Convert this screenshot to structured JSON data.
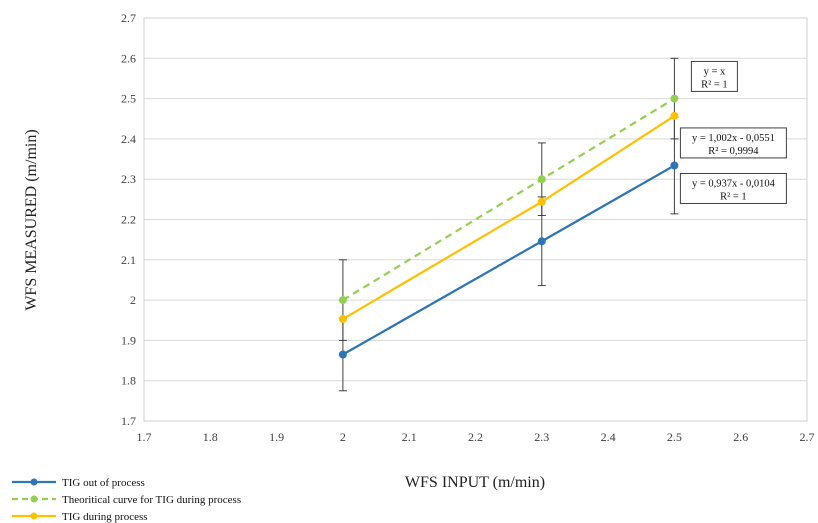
{
  "chart_data": {
    "type": "line",
    "xlabel": "WFS INPUT (m/min)",
    "ylabel": "WFS MEASURED (m/min)",
    "xlim": [
      1.7,
      2.7
    ],
    "ylim": [
      1.7,
      2.7
    ],
    "xticks": [
      "1.7",
      "1.8",
      "1.9",
      "2",
      "2.1",
      "2.2",
      "2.3",
      "2.4",
      "2.5",
      "2.6",
      "2.7"
    ],
    "yticks": [
      "1.7",
      "1.8",
      "1.9",
      "2",
      "2.1",
      "2.2",
      "2.3",
      "2.4",
      "2.5",
      "2.6",
      "2.7"
    ],
    "grid": "horizontal",
    "legend_position": "bottom-left",
    "series": [
      {
        "name": "TIG out of process",
        "color": "#2E75B6",
        "dash": "solid",
        "x": [
          2.0,
          2.3,
          2.5
        ],
        "y": [
          1.865,
          2.146,
          2.334
        ],
        "error": [
          0.09,
          0.11,
          0.12
        ]
      },
      {
        "name": "Theoritical curve for TIG during process",
        "color": "#92D050",
        "dash": "dashed",
        "x": [
          2.0,
          2.3,
          2.5
        ],
        "y": [
          2.0,
          2.3,
          2.5
        ],
        "error": [
          0.1,
          0.09,
          0.1
        ]
      },
      {
        "name": "TIG during process",
        "color": "#FFC000",
        "dash": "solid",
        "x": [
          2.0,
          2.3,
          2.5
        ],
        "y": [
          1.953,
          2.244,
          2.457
        ],
        "error": null
      }
    ],
    "annotations": [
      {
        "line1": "y = x",
        "line2": "R² = 1"
      },
      {
        "line1": "y = 1,002x - 0,0551",
        "line2": "R² = 0,9994"
      },
      {
        "line1": "y = 0,937x - 0,0104",
        "line2": "R² = 1"
      }
    ]
  }
}
